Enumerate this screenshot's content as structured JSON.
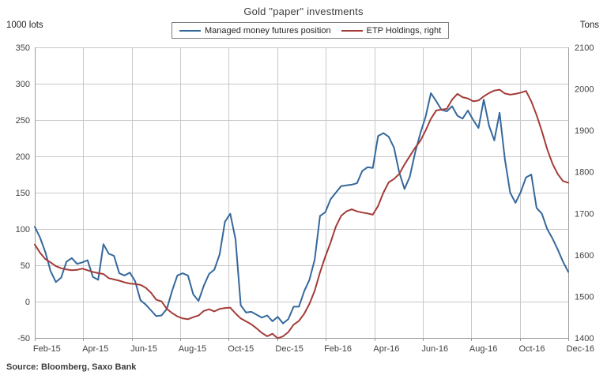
{
  "chart_data": {
    "type": "line",
    "title": "Gold \"paper\" investments",
    "source_note": "Source: Bloomberg, Saxo Bank",
    "grid": "both",
    "legend_position": "top-center",
    "left_axis": {
      "unit_label": "1000 lots",
      "min": -50,
      "max": 350,
      "tick_step": 50,
      "ticks": [
        350,
        300,
        250,
        200,
        150,
        100,
        50,
        0,
        -50
      ]
    },
    "right_axis": {
      "unit_label": "Tons",
      "min": 1400,
      "max": 2100,
      "tick_step": 100,
      "ticks": [
        2100,
        2000,
        1900,
        1800,
        1700,
        1600,
        1500,
        1400
      ]
    },
    "x_tick_labels": [
      "Feb-15",
      "Apr-15",
      "Jun-15",
      "Aug-15",
      "Oct-15",
      "Dec-15",
      "Feb-16",
      "Apr-16",
      "Jun-16",
      "Aug-16",
      "Oct-16",
      "Dec-16"
    ],
    "x_range": [
      "Feb-2015",
      "Dec-2016"
    ],
    "sampling": "weekly",
    "colors": {
      "grid": "#C9C9C9",
      "axis": "#9C9C9C",
      "tick_text": "#404040"
    },
    "series": [
      {
        "name": "Managed money futures position",
        "axis": "left",
        "color": "#35689B",
        "values": [
          103,
          88,
          68,
          42,
          27,
          33,
          55,
          60,
          52,
          54,
          57,
          34,
          30,
          79,
          66,
          63,
          39,
          36,
          40,
          28,
          2,
          -4,
          -12,
          -20,
          -19,
          -10,
          15,
          36,
          39,
          36,
          10,
          1,
          22,
          38,
          44,
          65,
          110,
          121,
          86,
          -5,
          -15,
          -14,
          -18,
          -22,
          -19,
          -27,
          -21,
          -30,
          -24,
          -7,
          -7,
          14,
          30,
          58,
          118,
          123,
          141,
          150,
          159,
          160,
          161,
          163,
          180,
          185,
          184,
          228,
          232,
          227,
          212,
          178,
          155,
          172,
          205,
          232,
          255,
          287,
          276,
          264,
          262,
          269,
          256,
          252,
          263,
          250,
          239,
          278,
          242,
          222,
          260,
          196,
          150,
          136,
          151,
          171,
          175,
          129,
          121,
          100,
          87,
          72,
          55,
          41
        ]
      },
      {
        "name": "ETP Holdings, right",
        "axis": "right",
        "color": "#A33C38",
        "values": [
          1625,
          1605,
          1590,
          1582,
          1573,
          1568,
          1565,
          1563,
          1564,
          1567,
          1563,
          1559,
          1556,
          1554,
          1544,
          1541,
          1538,
          1534,
          1531,
          1530,
          1528,
          1521,
          1509,
          1492,
          1488,
          1470,
          1460,
          1452,
          1447,
          1445,
          1450,
          1454,
          1465,
          1469,
          1464,
          1470,
          1472,
          1473,
          1459,
          1447,
          1440,
          1433,
          1423,
          1412,
          1404,
          1410,
          1399,
          1404,
          1414,
          1432,
          1441,
          1458,
          1482,
          1514,
          1558,
          1596,
          1630,
          1668,
          1694,
          1705,
          1710,
          1705,
          1702,
          1700,
          1697,
          1718,
          1750,
          1775,
          1783,
          1795,
          1818,
          1838,
          1858,
          1875,
          1900,
          1928,
          1948,
          1950,
          1952,
          1974,
          1988,
          1980,
          1977,
          1970,
          1972,
          1982,
          1990,
          1996,
          1998,
          1989,
          1986,
          1988,
          1991,
          1995,
          1970,
          1937,
          1898,
          1855,
          1820,
          1795,
          1778,
          1774
        ]
      }
    ]
  }
}
